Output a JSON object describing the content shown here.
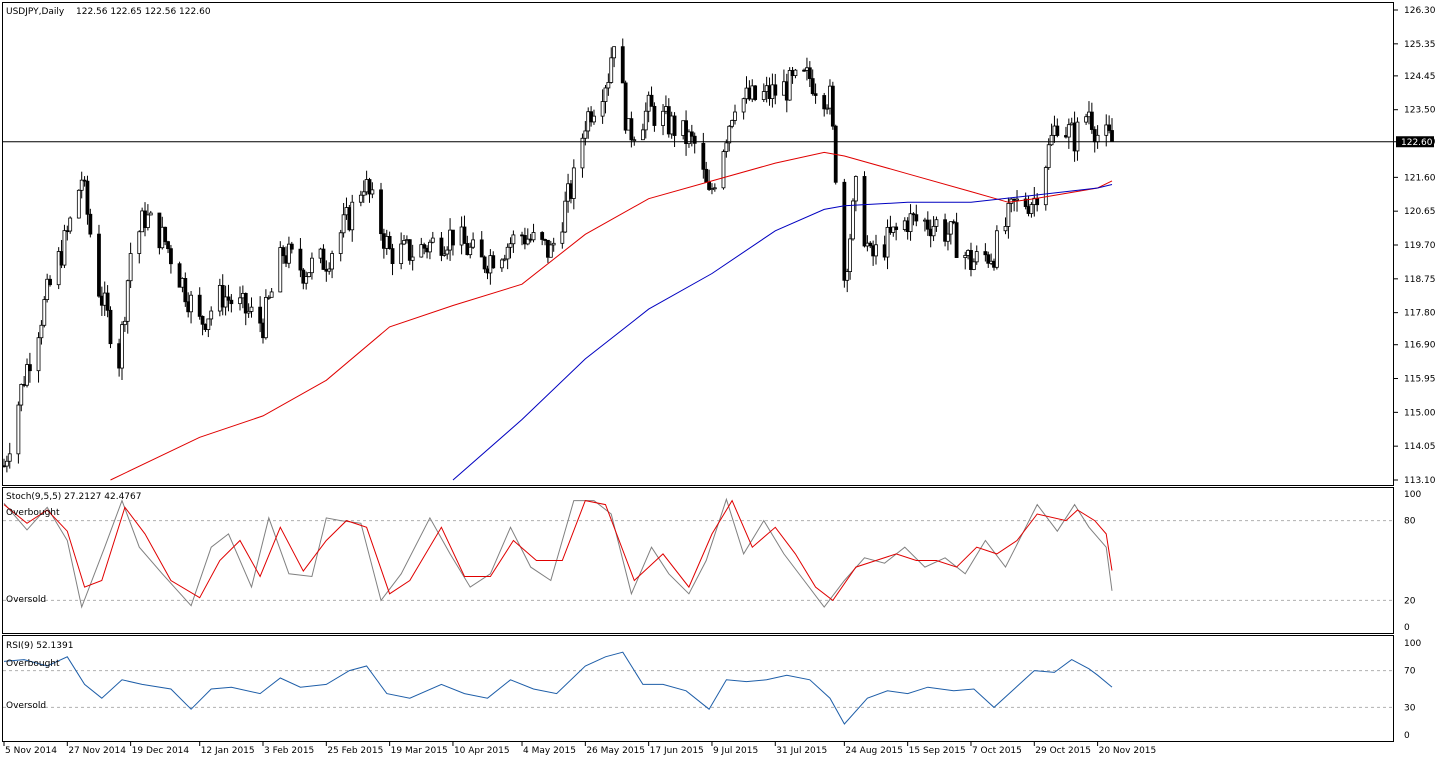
{
  "header": {
    "symbol_label": "USDJPY,Daily",
    "ohlc_label": "122.56 122.65 122.56 122.60"
  },
  "colors": {
    "background": "#ffffff",
    "axis": "#000000",
    "candle": "#000000",
    "ma_fast": "#e00000",
    "ma_slow": "#0000c0",
    "stoch_main": "#808080",
    "stoch_signal": "#e00000",
    "rsi": "#1e5ea8",
    "level_line": "#b0b0b0"
  },
  "price_panel": {
    "current_price_label": "122.60",
    "y_ticks": [
      "126.30",
      "125.35",
      "124.45",
      "123.50",
      "122.60",
      "121.60",
      "120.65",
      "119.70",
      "118.75",
      "117.80",
      "116.90",
      "115.95",
      "115.00",
      "114.05",
      "113.10"
    ]
  },
  "stoch_panel": {
    "label": "Stoch(9,5,5) 27.2127 42.4767",
    "overbought_label": "Overbought",
    "oversold_label": "Oversold",
    "y_ticks": [
      "100",
      "80",
      "20",
      "0"
    ]
  },
  "rsi_panel": {
    "label": "RSI(9) 52.1391",
    "overbought_label": "Overbought",
    "oversold_label": "Oversold",
    "y_ticks": [
      "100",
      "70",
      "30",
      "0"
    ]
  },
  "x_axis": {
    "labels": [
      "5 Nov 2014",
      "27 Nov 2014",
      "19 Dec 2014",
      "12 Jan 2015",
      "3 Feb 2015",
      "25 Feb 2015",
      "19 Mar 2015",
      "10 Apr 2015",
      "4 May 2015",
      "26 May 2015",
      "17 Jun 2015",
      "9 Jul 2015",
      "31 Jul 2015",
      "24 Aug 2015",
      "15 Sep 2015",
      "7 Oct 2015",
      "29 Oct 2015",
      "20 Nov 2015"
    ]
  },
  "chart_data": {
    "type": "candlestick",
    "symbol": "USDJPY",
    "timeframe": "Daily",
    "current_price": 122.6,
    "price_range": [
      113.1,
      126.3
    ],
    "close_path_anchors": [
      [
        "5 Nov 2014",
        113.5
      ],
      [
        "12 Nov 2014",
        116.0
      ],
      [
        "20 Nov 2014",
        118.3
      ],
      [
        "27 Nov 2014",
        120.0
      ],
      [
        "2 Dec 2014",
        121.6
      ],
      [
        "8 Dec 2014",
        118.5
      ],
      [
        "15 Dec 2014",
        116.5
      ],
      [
        "19 Dec 2014",
        119.5
      ],
      [
        "24 Dec 2014",
        120.5
      ],
      [
        "31 Dec 2014",
        119.8
      ],
      [
        "12 Jan 2015",
        117.5
      ],
      [
        "20 Jan 2015",
        118.3
      ],
      [
        "3 Feb 2015",
        117.5
      ],
      [
        "10 Feb 2015",
        119.5
      ],
      [
        "17 Feb 2015",
        119.0
      ],
      [
        "25 Feb 2015",
        119.3
      ],
      [
        "5 Mar 2015",
        120.5
      ],
      [
        "10 Mar 2015",
        121.5
      ],
      [
        "19 Mar 2015",
        119.5
      ],
      [
        "27 Mar 2015",
        119.5
      ],
      [
        "10 Apr 2015",
        120.0
      ],
      [
        "20 Apr 2015",
        119.2
      ],
      [
        "4 May 2015",
        120.0
      ],
      [
        "14 May 2015",
        119.5
      ],
      [
        "22 May 2015",
        121.5
      ],
      [
        "26 May 2015",
        123.2
      ],
      [
        "3 Jun 2015",
        124.5
      ],
      [
        "5 Jun 2015",
        125.6
      ],
      [
        "10 Jun 2015",
        122.8
      ],
      [
        "17 Jun 2015",
        123.5
      ],
      [
        "26 Jun 2015",
        123.0
      ],
      [
        "3 Jul 2015",
        122.5
      ],
      [
        "8 Jul 2015",
        121.0
      ],
      [
        "17 Jul 2015",
        123.8
      ],
      [
        "24 Jul 2015",
        123.8
      ],
      [
        "31 Jul 2015",
        124.0
      ],
      [
        "12 Aug 2015",
        124.4
      ],
      [
        "19 Aug 2015",
        123.8
      ],
      [
        "24 Aug 2015",
        118.8
      ],
      [
        "28 Aug 2015",
        121.2
      ],
      [
        "2 Sep 2015",
        119.3
      ],
      [
        "15 Sep 2015",
        120.4
      ],
      [
        "25 Sep 2015",
        120.3
      ],
      [
        "1 Oct 2015",
        119.9
      ],
      [
        "7 Oct 2015",
        119.2
      ],
      [
        "15 Oct 2015",
        119.5
      ],
      [
        "22 Oct 2015",
        120.8
      ],
      [
        "29 Oct 2015",
        121.0
      ],
      [
        "6 Nov 2015",
        123.2
      ],
      [
        "12 Nov 2015",
        122.7
      ],
      [
        "17 Nov 2015",
        123.5
      ],
      [
        "20 Nov 2015",
        122.8
      ],
      [
        "25 Nov 2015",
        122.6
      ]
    ],
    "moving_average_fast": [
      [
        "12 Dec 2014",
        113.1
      ],
      [
        "12 Jan 2015",
        114.3
      ],
      [
        "3 Feb 2015",
        114.9
      ],
      [
        "25 Feb 2015",
        115.9
      ],
      [
        "19 Mar 2015",
        117.4
      ],
      [
        "10 Apr 2015",
        118.0
      ],
      [
        "4 May 2015",
        118.6
      ],
      [
        "26 May 2015",
        120.0
      ],
      [
        "17 Jun 2015",
        121.0
      ],
      [
        "9 Jul 2015",
        121.5
      ],
      [
        "31 Jul 2015",
        122.0
      ],
      [
        "17 Aug 2015",
        122.3
      ],
      [
        "24 Aug 2015",
        122.2
      ],
      [
        "15 Sep 2015",
        121.7
      ],
      [
        "7 Oct 2015",
        121.2
      ],
      [
        "20 Oct 2015",
        120.9
      ],
      [
        "29 Oct 2015",
        121.0
      ],
      [
        "20 Nov 2015",
        121.3
      ],
      [
        "25 Nov 2015",
        121.5
      ]
    ],
    "moving_average_slow": [
      [
        "10 Apr 2015",
        113.1
      ],
      [
        "4 May 2015",
        114.8
      ],
      [
        "26 May 2015",
        116.5
      ],
      [
        "17 Jun 2015",
        117.9
      ],
      [
        "9 Jul 2015",
        118.9
      ],
      [
        "31 Jul 2015",
        120.1
      ],
      [
        "17 Aug 2015",
        120.7
      ],
      [
        "24 Aug 2015",
        120.8
      ],
      [
        "15 Sep 2015",
        120.9
      ],
      [
        "7 Oct 2015",
        120.9
      ],
      [
        "29 Oct 2015",
        121.1
      ],
      [
        "20 Nov 2015",
        121.3
      ],
      [
        "25 Nov 2015",
        121.4
      ]
    ],
    "stochastic": {
      "k_period": 9,
      "d_period": 5,
      "slowing": 5,
      "main_last": 27.2127,
      "signal_last": 42.4767,
      "levels": [
        20,
        80
      ],
      "main_path": [
        [
          "5 Nov 2014",
          93
        ],
        [
          "13 Nov 2014",
          73
        ],
        [
          "20 Nov 2014",
          90
        ],
        [
          "27 Nov 2014",
          65
        ],
        [
          "2 Dec 2014",
          15
        ],
        [
          "10 Dec 2014",
          60
        ],
        [
          "16 Dec 2014",
          95
        ],
        [
          "22 Dec 2014",
          60
        ],
        [
          "30 Dec 2014",
          40
        ],
        [
          "9 Jan 2015",
          16
        ],
        [
          "16 Jan 2015",
          60
        ],
        [
          "22 Jan 2015",
          70
        ],
        [
          "30 Jan 2015",
          30
        ],
        [
          "5 Feb 2015",
          82
        ],
        [
          "12 Feb 2015",
          40
        ],
        [
          "20 Feb 2015",
          38
        ],
        [
          "25 Feb 2015",
          82
        ],
        [
          "2 Mar 2015",
          80
        ],
        [
          "9 Mar 2015",
          78
        ],
        [
          "16 Mar 2015",
          20
        ],
        [
          "23 Mar 2015",
          40
        ],
        [
          "2 Apr 2015",
          82
        ],
        [
          "9 Apr 2015",
          55
        ],
        [
          "16 Apr 2015",
          30
        ],
        [
          "23 Apr 2015",
          40
        ],
        [
          "30 Apr 2015",
          75
        ],
        [
          "7 May 2015",
          45
        ],
        [
          "14 May 2015",
          35
        ],
        [
          "22 May 2015",
          95
        ],
        [
          "29 May 2015",
          95
        ],
        [
          "4 Jun 2015",
          85
        ],
        [
          "11 Jun 2015",
          25
        ],
        [
          "18 Jun 2015",
          60
        ],
        [
          "24 Jun 2015",
          40
        ],
        [
          "1 Jul 2015",
          25
        ],
        [
          "7 Jul 2015",
          50
        ],
        [
          "14 Jul 2015",
          96
        ],
        [
          "20 Jul 2015",
          55
        ],
        [
          "27 Jul 2015",
          80
        ],
        [
          "3 Aug 2015",
          55
        ],
        [
          "10 Aug 2015",
          35
        ],
        [
          "17 Aug 2015",
          15
        ],
        [
          "24 Aug 2015",
          35
        ],
        [
          "31 Aug 2015",
          52
        ],
        [
          "7 Sep 2015",
          48
        ],
        [
          "14 Sep 2015",
          60
        ],
        [
          "21 Sep 2015",
          45
        ],
        [
          "28 Sep 2015",
          52
        ],
        [
          "5 Oct 2015",
          40
        ],
        [
          "12 Oct 2015",
          65
        ],
        [
          "19 Oct 2015",
          45
        ],
        [
          "26 Oct 2015",
          75
        ],
        [
          "30 Oct 2015",
          92
        ],
        [
          "6 Nov 2015",
          72
        ],
        [
          "12 Nov 2015",
          92
        ],
        [
          "17 Nov 2015",
          75
        ],
        [
          "23 Nov 2015",
          60
        ],
        [
          "25 Nov 2015",
          27.2
        ]
      ],
      "signal_path": [
        [
          "5 Nov 2014",
          92
        ],
        [
          "13 Nov 2014",
          78
        ],
        [
          "20 Nov 2014",
          88
        ],
        [
          "27 Nov 2014",
          72
        ],
        [
          "3 Dec 2014",
          30
        ],
        [
          "9 Dec 2014",
          35
        ],
        [
          "17 Dec 2014",
          90
        ],
        [
          "24 Dec 2014",
          70
        ],
        [
          "2 Jan 2015",
          35
        ],
        [
          "12 Jan 2015",
          22
        ],
        [
          "19 Jan 2015",
          50
        ],
        [
          "26 Jan 2015",
          65
        ],
        [
          "2 Feb 2015",
          38
        ],
        [
          "9 Feb 2015",
          75
        ],
        [
          "17 Feb 2015",
          42
        ],
        [
          "25 Feb 2015",
          65
        ],
        [
          "4 Mar 2015",
          80
        ],
        [
          "11 Mar 2015",
          75
        ],
        [
          "19 Mar 2015",
          25
        ],
        [
          "26 Mar 2015",
          35
        ],
        [
          "6 Apr 2015",
          75
        ],
        [
          "14 Apr 2015",
          38
        ],
        [
          "23 Apr 2015",
          38
        ],
        [
          "1 May 2015",
          65
        ],
        [
          "9 May 2015",
          50
        ],
        [
          "18 May 2015",
          50
        ],
        [
          "26 May 2015",
          95
        ],
        [
          "2 Jun 2015",
          92
        ],
        [
          "12 Jun 2015",
          35
        ],
        [
          "22 Jun 2015",
          55
        ],
        [
          "1 Jul 2015",
          30
        ],
        [
          "9 Jul 2015",
          70
        ],
        [
          "16 Jul 2015",
          95
        ],
        [
          "23 Jul 2015",
          60
        ],
        [
          "31 Jul 2015",
          75
        ],
        [
          "7 Aug 2015",
          55
        ],
        [
          "14 Aug 2015",
          30
        ],
        [
          "20 Aug 2015",
          20
        ],
        [
          "28 Aug 2015",
          45
        ],
        [
          "4 Sep 2015",
          50
        ],
        [
          "11 Sep 2015",
          55
        ],
        [
          "18 Sep 2015",
          50
        ],
        [
          "25 Sep 2015",
          50
        ],
        [
          "2 Oct 2015",
          45
        ],
        [
          "9 Oct 2015",
          60
        ],
        [
          "16 Oct 2015",
          55
        ],
        [
          "23 Oct 2015",
          65
        ],
        [
          "30 Oct 2015",
          85
        ],
        [
          "9 Nov 2015",
          80
        ],
        [
          "13 Nov 2015",
          88
        ],
        [
          "19 Nov 2015",
          80
        ],
        [
          "23 Nov 2015",
          70
        ],
        [
          "25 Nov 2015",
          42.5
        ]
      ]
    },
    "rsi": {
      "period": 9,
      "last": 52.1391,
      "levels": [
        30,
        70
      ],
      "path": [
        [
          "5 Nov 2014",
          80
        ],
        [
          "12 Nov 2014",
          82
        ],
        [
          "20 Nov 2014",
          75
        ],
        [
          "27 Nov 2014",
          85
        ],
        [
          "3 Dec 2014",
          55
        ],
        [
          "9 Dec 2014",
          40
        ],
        [
          "16 Dec 2014",
          60
        ],
        [
          "23 Dec 2014",
          55
        ],
        [
          "2 Jan 2015",
          50
        ],
        [
          "9 Jan 2015",
          28
        ],
        [
          "16 Jan 2015",
          50
        ],
        [
          "23 Jan 2015",
          52
        ],
        [
          "2 Feb 2015",
          45
        ],
        [
          "9 Feb 2015",
          62
        ],
        [
          "16 Feb 2015",
          52
        ],
        [
          "25 Feb 2015",
          55
        ],
        [
          "5 Mar 2015",
          70
        ],
        [
          "11 Mar 2015",
          75
        ],
        [
          "18 Mar 2015",
          45
        ],
        [
          "26 Mar 2015",
          40
        ],
        [
          "6 Apr 2015",
          55
        ],
        [
          "14 Apr 2015",
          45
        ],
        [
          "22 Apr 2015",
          40
        ],
        [
          "30 Apr 2015",
          60
        ],
        [
          "8 May 2015",
          50
        ],
        [
          "16 May 2015",
          45
        ],
        [
          "26 May 2015",
          75
        ],
        [
          "2 Jun 2015",
          85
        ],
        [
          "8 Jun 2015",
          90
        ],
        [
          "15 Jun 2015",
          55
        ],
        [
          "22 Jun 2015",
          55
        ],
        [
          "30 Jun 2015",
          48
        ],
        [
          "8 Jul 2015",
          28
        ],
        [
          "14 Jul 2015",
          60
        ],
        [
          "21 Jul 2015",
          58
        ],
        [
          "28 Jul 2015",
          60
        ],
        [
          "4 Aug 2015",
          65
        ],
        [
          "12 Aug 2015",
          60
        ],
        [
          "19 Aug 2015",
          40
        ],
        [
          "24 Aug 2015",
          12
        ],
        [
          "1 Sep 2015",
          40
        ],
        [
          "8 Sep 2015",
          48
        ],
        [
          "15 Sep 2015",
          45
        ],
        [
          "22 Sep 2015",
          52
        ],
        [
          "1 Oct 2015",
          48
        ],
        [
          "8 Oct 2015",
          50
        ],
        [
          "15 Oct 2015",
          30
        ],
        [
          "22 Oct 2015",
          50
        ],
        [
          "29 Oct 2015",
          70
        ],
        [
          "5 Nov 2015",
          68
        ],
        [
          "11 Nov 2015",
          82
        ],
        [
          "17 Nov 2015",
          72
        ],
        [
          "20 Nov 2015",
          65
        ],
        [
          "25 Nov 2015",
          52.1
        ]
      ]
    }
  }
}
